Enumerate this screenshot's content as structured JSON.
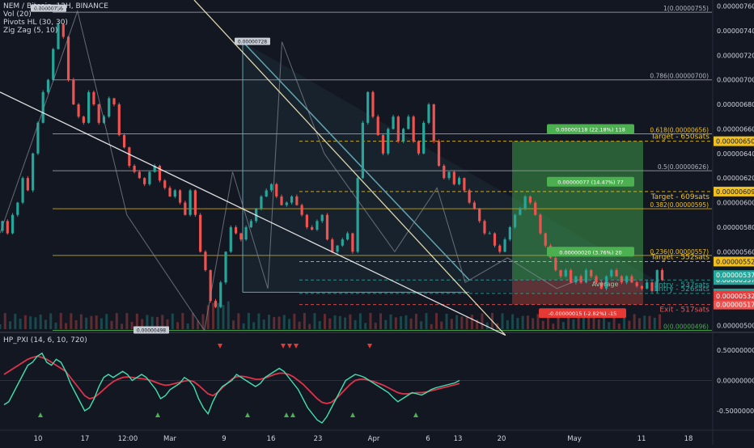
{
  "legend": {
    "symbol": "NEM / Bitcoin, 12H, BINANCE",
    "vol": "Vol (20)",
    "pivots": "Pivots HL (30, 30)",
    "zigzag": "Zig Zag (5, 10)"
  },
  "oscillator": {
    "label": "HP_PXI (14, 6, 10, 720)"
  },
  "colors": {
    "background": "#131722",
    "up": "#26a69a",
    "down": "#ef5350",
    "fib": "#c0a020",
    "grid_fib": "#9598a1",
    "trendline": "#ffffff",
    "channel": "#5fa6b0",
    "target_zone": "#2e6b3a",
    "stop_zone": "#6b2e2e",
    "pxi_fast": "#40e0b0",
    "pxi_slow": "#e0334a"
  },
  "price_axis": {
    "ticks": [
      "0.00000760",
      "0.00000740",
      "0.00000720",
      "0.00000700",
      "0.00000680",
      "0.00000660",
      "0.00000640",
      "0.00000620",
      "0.00000600",
      "0.00000580",
      "0.00000560",
      "0.00000540",
      "0.00000520",
      "0.00000500"
    ]
  },
  "osc_axis": {
    "ticks": [
      "0.50000000",
      "0.00000000",
      "-0.50000000"
    ]
  },
  "time_axis": {
    "ticks": [
      "10",
      "17",
      "12:00",
      "Mar",
      "9",
      "16",
      "23",
      "Apr",
      "6",
      "13",
      "20",
      "May",
      "11",
      "18"
    ]
  },
  "fib_levels": [
    {
      "label": "1(0.00000755)",
      "price": 7.55e-06
    },
    {
      "label": "0.786(0.00000700)",
      "price": 7e-06
    },
    {
      "label": "0.618(0.00000656)",
      "price": 6.56e-06
    },
    {
      "label": "0.5(0.00000626)",
      "price": 6.26e-06
    },
    {
      "label": "0.382(0.00000595)",
      "price": 5.95e-06
    },
    {
      "label": "0.236(0.00000557)",
      "price": 5.57e-06
    },
    {
      "label": "0(0.00000496)",
      "price": 4.96e-06
    }
  ],
  "targets": [
    {
      "label": "Target - 650sats",
      "price": 6.5e-06,
      "tag": "0.00000650",
      "color": "#f0c020"
    },
    {
      "label": "Target - 609sats",
      "price": 6.09e-06,
      "tag": "0.00000609",
      "color": "#f0c020"
    },
    {
      "label": "Target - 552sats",
      "price": 5.52e-06,
      "tag": "0.00000552",
      "color": "#f0c020"
    },
    {
      "label": "Entry - 537sats",
      "price": 5.37e-06,
      "tag": "0.00000537",
      "color": "#26a69a"
    },
    {
      "label": "Entry - 526sats",
      "price": 5.26e-06,
      "tag": "0.00000526",
      "color": "#26a69a"
    },
    {
      "label": "Exit - 517sats",
      "price": 5.17e-06,
      "tag": "0.00000517",
      "color": "#ef5350"
    }
  ],
  "last_price_tags": [
    {
      "text": "0.00000537",
      "price": 5.37e-06,
      "color": "#26a69a"
    },
    {
      "text": "0.00000532",
      "price": 5.32e-06,
      "color": "#e04040"
    }
  ],
  "average_label": "Average",
  "position_boxes": [
    {
      "text": "0.00000118 (22.18%) 118",
      "price": 6.6e-06,
      "color": "#4caf50"
    },
    {
      "text": "0.00000077 (14.47%) 77",
      "price": 6.17e-06,
      "color": "#4caf50"
    },
    {
      "text": "0.00000020 (3.76%) 20",
      "price": 5.6e-06,
      "color": "#4caf50"
    },
    {
      "text": "-0.00000015 (-2.82%) -15",
      "price": 5.1e-06,
      "color": "#e53935"
    }
  ],
  "pivot_labels": [
    {
      "text": "0.00000756",
      "price": 7.58e-06,
      "day": 11
    },
    {
      "text": "0.00000728",
      "price": 7.31e-06,
      "day": 40
    },
    {
      "text": "0.00000498",
      "price": 4.96e-06,
      "day": 29
    }
  ],
  "chart_data": {
    "type": "candlestick",
    "title": "NEM / Bitcoin, 12H, BINANCE",
    "ylim": [
      4.95e-06,
      7.65e-06
    ],
    "x_range_days": [
      0,
      101
    ],
    "closes": [
      5.85e-06,
      5.75e-06,
      5.9e-06,
      6e-06,
      6.2e-06,
      6.1e-06,
      6.4e-06,
      6.65e-06,
      6.9e-06,
      7e-06,
      7.25e-06,
      7.45e-06,
      7.35e-06,
      7e-06,
      6.8e-06,
      6.7e-06,
      6.65e-06,
      6.9e-06,
      6.8e-06,
      6.65e-06,
      6.7e-06,
      6.85e-06,
      6.8e-06,
      6.55e-06,
      6.45e-06,
      6.3e-06,
      6.25e-06,
      6.2e-06,
      6.15e-06,
      6.25e-06,
      6.3e-06,
      6.18e-06,
      6.12e-06,
      6.05e-06,
      6.1e-06,
      6e-06,
      5.9e-06,
      6.1e-06,
      5.9e-06,
      5.6e-06,
      5.45e-06,
      5.2e-06,
      5.15e-06,
      5.35e-06,
      5.6e-06,
      5.8e-06,
      5.75e-06,
      5.7e-06,
      5.8e-06,
      5.85e-06,
      5.95e-06,
      6.05e-06,
      6.1e-06,
      6.15e-06,
      6.05e-06,
      5.98e-06,
      6e-06,
      6.05e-06,
      5.98e-06,
      5.9e-06,
      5.8e-06,
      5.78e-06,
      5.85e-06,
      5.9e-06,
      5.7e-06,
      5.6e-06,
      5.65e-06,
      5.7e-06,
      5.75e-06,
      5.6e-06,
      6.2e-06,
      6.65e-06,
      6.9e-06,
      6.7e-06,
      6.55e-06,
      6.4e-06,
      6.6e-06,
      6.7e-06,
      6.5e-06,
      6.6e-06,
      6.7e-06,
      6.5e-06,
      6.4e-06,
      6.65e-06,
      6.8e-06,
      6.5e-06,
      6.3e-06,
      6.2e-06,
      6.25e-06,
      6.15e-06,
      6.2e-06,
      6.1e-06,
      6e-06,
      5.95e-06,
      5.85e-06,
      5.75e-06,
      5.75e-06,
      5.65e-06,
      5.6e-06,
      5.7e-06,
      5.8e-06,
      5.9e-06,
      5.95e-06,
      6.05e-06,
      6e-06,
      5.9e-06,
      5.75e-06,
      5.65e-06,
      5.55e-06,
      5.45e-06,
      5.4e-06,
      5.45e-06,
      5.35e-06,
      5.4e-06,
      5.35e-06,
      5.45e-06,
      5.4e-06,
      5.35e-06,
      5.3e-06,
      5.4e-06,
      5.45e-06,
      5.4e-06,
      5.35e-06,
      5.4e-06,
      5.35e-06,
      5.32e-06,
      5.3e-06,
      5.35e-06,
      5.28e-06,
      5.45e-06,
      5.37e-06
    ],
    "pxi_fast": [
      -0.4,
      -0.35,
      -0.2,
      -0.05,
      0.1,
      0.25,
      0.3,
      0.4,
      0.45,
      0.3,
      0.25,
      0.35,
      0.3,
      0.15,
      -0.05,
      -0.2,
      -0.35,
      -0.5,
      -0.45,
      -0.3,
      -0.1,
      0.05,
      0.1,
      0.05,
      0.1,
      0.15,
      0.1,
      0.0,
      0.05,
      0.1,
      0.05,
      -0.05,
      -0.15,
      -0.3,
      -0.25,
      -0.15,
      -0.1,
      -0.05,
      0.05,
      0.0,
      -0.1,
      -0.3,
      -0.45,
      -0.55,
      -0.35,
      -0.2,
      -0.1,
      -0.05,
      0.0,
      0.1,
      0.05,
      0.0,
      -0.05,
      -0.1,
      -0.05,
      0.05,
      0.1,
      0.15,
      0.2,
      0.15,
      0.05,
      -0.05,
      -0.15,
      -0.3,
      -0.45,
      -0.55,
      -0.65,
      -0.7,
      -0.6,
      -0.45,
      -0.3,
      -0.15,
      0.0,
      0.05,
      0.1,
      0.08,
      0.05,
      0.0,
      -0.05,
      -0.1,
      -0.15,
      -0.2,
      -0.28,
      -0.35,
      -0.3,
      -0.25,
      -0.2,
      -0.22,
      -0.24,
      -0.2,
      -0.15,
      -0.12,
      -0.1,
      -0.08,
      -0.06,
      -0.04,
      0.0
    ],
    "pxi_slow": [
      0.1,
      0.15,
      0.2,
      0.25,
      0.3,
      0.35,
      0.38,
      0.4,
      0.38,
      0.35,
      0.3,
      0.25,
      0.2,
      0.15,
      0.05,
      -0.05,
      -0.15,
      -0.25,
      -0.3,
      -0.28,
      -0.22,
      -0.15,
      -0.08,
      -0.02,
      0.02,
      0.05,
      0.06,
      0.05,
      0.04,
      0.03,
      0.02,
      0.0,
      -0.03,
      -0.06,
      -0.08,
      -0.07,
      -0.05,
      -0.03,
      -0.01,
      0.0,
      -0.02,
      -0.08,
      -0.15,
      -0.22,
      -0.25,
      -0.2,
      -0.12,
      -0.05,
      0.02,
      0.06,
      0.07,
      0.06,
      0.04,
      0.02,
      0.02,
      0.04,
      0.07,
      0.1,
      0.12,
      0.12,
      0.1,
      0.06,
      0.0,
      -0.06,
      -0.14,
      -0.22,
      -0.3,
      -0.36,
      -0.38,
      -0.36,
      -0.3,
      -0.22,
      -0.14,
      -0.06,
      0.0,
      0.02,
      0.02,
      0.0,
      -0.02,
      -0.05,
      -0.08,
      -0.12,
      -0.16,
      -0.2,
      -0.22,
      -0.22,
      -0.21,
      -0.2,
      -0.2,
      -0.19,
      -0.17,
      -0.15,
      -0.13,
      -0.11,
      -0.09,
      -0.07,
      -0.05
    ]
  }
}
